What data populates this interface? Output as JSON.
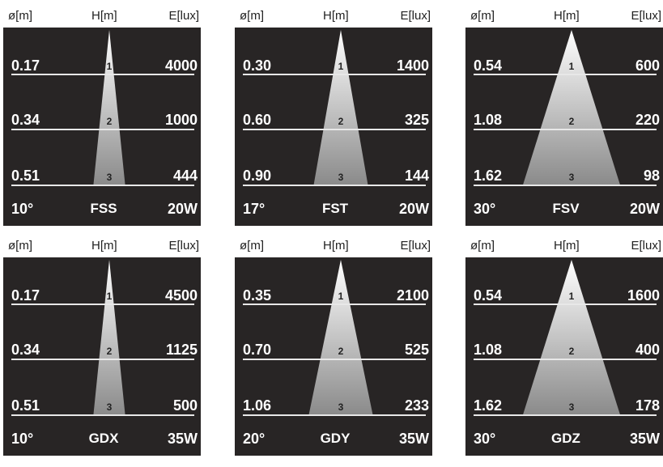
{
  "headers": {
    "diameter": "ø[m]",
    "height": "H[m]",
    "illuminance": "E[lux]"
  },
  "colors": {
    "panel": "#282525",
    "line": "#e8e8e8",
    "cone_top": "#ffffff",
    "cone_bottom": "#8a8a8a"
  },
  "panels": [
    {
      "angle": "10°",
      "model": "FSS",
      "power": "20W",
      "beam_deg": 10,
      "rows": [
        {
          "h": "1",
          "d": "0.17",
          "e": "4000"
        },
        {
          "h": "2",
          "d": "0.34",
          "e": "1000"
        },
        {
          "h": "3",
          "d": "0.51",
          "e": "444"
        }
      ]
    },
    {
      "angle": "17°",
      "model": "FST",
      "power": "20W",
      "beam_deg": 17,
      "rows": [
        {
          "h": "1",
          "d": "0.30",
          "e": "1400"
        },
        {
          "h": "2",
          "d": "0.60",
          "e": "325"
        },
        {
          "h": "3",
          "d": "0.90",
          "e": "144"
        }
      ]
    },
    {
      "angle": "30°",
      "model": "FSV",
      "power": "20W",
      "beam_deg": 30,
      "rows": [
        {
          "h": "1",
          "d": "0.54",
          "e": "600"
        },
        {
          "h": "2",
          "d": "1.08",
          "e": "220"
        },
        {
          "h": "3",
          "d": "1.62",
          "e": "98"
        }
      ]
    },
    {
      "angle": "10°",
      "model": "GDX",
      "power": "35W",
      "beam_deg": 10,
      "rows": [
        {
          "h": "1",
          "d": "0.17",
          "e": "4500"
        },
        {
          "h": "2",
          "d": "0.34",
          "e": "1125"
        },
        {
          "h": "3",
          "d": "0.51",
          "e": "500"
        }
      ]
    },
    {
      "angle": "20°",
      "model": "GDY",
      "power": "35W",
      "beam_deg": 20,
      "rows": [
        {
          "h": "1",
          "d": "0.35",
          "e": "2100"
        },
        {
          "h": "2",
          "d": "0.70",
          "e": "525"
        },
        {
          "h": "3",
          "d": "1.06",
          "e": "233"
        }
      ]
    },
    {
      "angle": "30°",
      "model": "GDZ",
      "power": "35W",
      "beam_deg": 30,
      "rows": [
        {
          "h": "1",
          "d": "0.54",
          "e": "1600"
        },
        {
          "h": "2",
          "d": "1.08",
          "e": "400"
        },
        {
          "h": "3",
          "d": "1.62",
          "e": "178"
        }
      ]
    }
  ]
}
